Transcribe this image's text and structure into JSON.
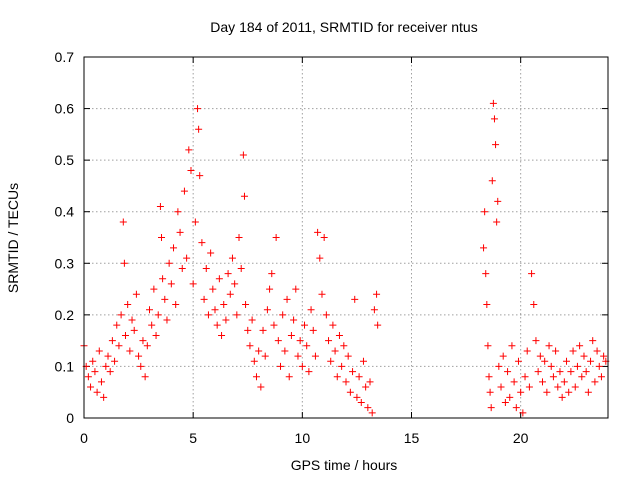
{
  "chart_data": {
    "type": "scatter",
    "title": "Day 184 of 2011, SRMTID for receiver ntus",
    "xlabel": "GPS time / hours",
    "ylabel": "SRMTID / TECUs",
    "xlim": [
      0,
      24
    ],
    "ylim": [
      0,
      0.7
    ],
    "xticks": [
      0,
      5,
      10,
      15,
      20
    ],
    "yticks": [
      0,
      0.1,
      0.2,
      0.3,
      0.4,
      0.5,
      0.6,
      0.7
    ],
    "xtick_labels": [
      "0",
      "5",
      "10",
      "15",
      "20"
    ],
    "ytick_labels": [
      "0",
      "0.1",
      "0.2",
      "0.3",
      "0.4",
      "0.5",
      "0.6",
      "0.7"
    ],
    "grid": true,
    "marker": "+",
    "marker_color": "#ff0000",
    "series": [
      {
        "name": "SRMTID",
        "color": "#ff0000",
        "points": [
          [
            0.0,
            0.14
          ],
          [
            0.1,
            0.1
          ],
          [
            0.2,
            0.08
          ],
          [
            0.3,
            0.06
          ],
          [
            0.4,
            0.11
          ],
          [
            0.5,
            0.09
          ],
          [
            0.6,
            0.05
          ],
          [
            0.7,
            0.13
          ],
          [
            0.8,
            0.07
          ],
          [
            0.9,
            0.04
          ],
          [
            1.0,
            0.1
          ],
          [
            1.1,
            0.12
          ],
          [
            1.2,
            0.09
          ],
          [
            1.3,
            0.15
          ],
          [
            1.4,
            0.11
          ],
          [
            1.5,
            0.18
          ],
          [
            1.6,
            0.14
          ],
          [
            1.7,
            0.2
          ],
          [
            1.8,
            0.38
          ],
          [
            1.85,
            0.3
          ],
          [
            1.9,
            0.16
          ],
          [
            2.0,
            0.22
          ],
          [
            2.1,
            0.13
          ],
          [
            2.2,
            0.19
          ],
          [
            2.3,
            0.17
          ],
          [
            2.4,
            0.24
          ],
          [
            2.5,
            0.12
          ],
          [
            2.6,
            0.1
          ],
          [
            2.7,
            0.15
          ],
          [
            2.8,
            0.08
          ],
          [
            2.9,
            0.14
          ],
          [
            3.0,
            0.21
          ],
          [
            3.1,
            0.18
          ],
          [
            3.2,
            0.25
          ],
          [
            3.3,
            0.16
          ],
          [
            3.4,
            0.2
          ],
          [
            3.5,
            0.41
          ],
          [
            3.55,
            0.35
          ],
          [
            3.6,
            0.27
          ],
          [
            3.7,
            0.23
          ],
          [
            3.8,
            0.19
          ],
          [
            3.9,
            0.3
          ],
          [
            4.0,
            0.26
          ],
          [
            4.1,
            0.33
          ],
          [
            4.2,
            0.22
          ],
          [
            4.3,
            0.4
          ],
          [
            4.4,
            0.36
          ],
          [
            4.5,
            0.29
          ],
          [
            4.6,
            0.44
          ],
          [
            4.7,
            0.31
          ],
          [
            4.8,
            0.52
          ],
          [
            4.9,
            0.48
          ],
          [
            5.0,
            0.26
          ],
          [
            5.1,
            0.38
          ],
          [
            5.2,
            0.6
          ],
          [
            5.25,
            0.56
          ],
          [
            5.3,
            0.47
          ],
          [
            5.4,
            0.34
          ],
          [
            5.5,
            0.23
          ],
          [
            5.6,
            0.29
          ],
          [
            5.7,
            0.2
          ],
          [
            5.8,
            0.32
          ],
          [
            5.9,
            0.25
          ],
          [
            6.0,
            0.21
          ],
          [
            6.1,
            0.18
          ],
          [
            6.2,
            0.27
          ],
          [
            6.3,
            0.16
          ],
          [
            6.4,
            0.22
          ],
          [
            6.5,
            0.19
          ],
          [
            6.6,
            0.28
          ],
          [
            6.7,
            0.24
          ],
          [
            6.8,
            0.31
          ],
          [
            6.9,
            0.26
          ],
          [
            7.0,
            0.2
          ],
          [
            7.1,
            0.35
          ],
          [
            7.2,
            0.29
          ],
          [
            7.3,
            0.51
          ],
          [
            7.35,
            0.43
          ],
          [
            7.4,
            0.22
          ],
          [
            7.5,
            0.17
          ],
          [
            7.6,
            0.14
          ],
          [
            7.7,
            0.19
          ],
          [
            7.8,
            0.11
          ],
          [
            7.9,
            0.08
          ],
          [
            8.0,
            0.13
          ],
          [
            8.1,
            0.06
          ],
          [
            8.2,
            0.17
          ],
          [
            8.3,
            0.12
          ],
          [
            8.4,
            0.21
          ],
          [
            8.5,
            0.25
          ],
          [
            8.6,
            0.28
          ],
          [
            8.7,
            0.18
          ],
          [
            8.8,
            0.35
          ],
          [
            8.9,
            0.15
          ],
          [
            9.0,
            0.1
          ],
          [
            9.1,
            0.2
          ],
          [
            9.2,
            0.13
          ],
          [
            9.3,
            0.23
          ],
          [
            9.4,
            0.08
          ],
          [
            9.5,
            0.16
          ],
          [
            9.6,
            0.19
          ],
          [
            9.7,
            0.25
          ],
          [
            9.8,
            0.12
          ],
          [
            9.9,
            0.15
          ],
          [
            10.0,
            0.1
          ],
          [
            10.1,
            0.18
          ],
          [
            10.2,
            0.14
          ],
          [
            10.3,
            0.09
          ],
          [
            10.4,
            0.21
          ],
          [
            10.5,
            0.17
          ],
          [
            10.6,
            0.12
          ],
          [
            10.7,
            0.36
          ],
          [
            10.8,
            0.31
          ],
          [
            10.9,
            0.24
          ],
          [
            11.0,
            0.35
          ],
          [
            11.1,
            0.2
          ],
          [
            11.2,
            0.15
          ],
          [
            11.3,
            0.11
          ],
          [
            11.4,
            0.18
          ],
          [
            11.5,
            0.13
          ],
          [
            11.6,
            0.08
          ],
          [
            11.7,
            0.16
          ],
          [
            11.8,
            0.1
          ],
          [
            11.9,
            0.14
          ],
          [
            12.0,
            0.07
          ],
          [
            12.1,
            0.12
          ],
          [
            12.2,
            0.05
          ],
          [
            12.3,
            0.09
          ],
          [
            12.4,
            0.23
          ],
          [
            12.5,
            0.04
          ],
          [
            12.6,
            0.08
          ],
          [
            12.7,
            0.03
          ],
          [
            12.8,
            0.11
          ],
          [
            12.9,
            0.06
          ],
          [
            13.0,
            0.02
          ],
          [
            13.1,
            0.07
          ],
          [
            13.2,
            0.01
          ],
          [
            13.3,
            0.21
          ],
          [
            13.4,
            0.24
          ],
          [
            13.45,
            0.18
          ],
          [
            18.3,
            0.33
          ],
          [
            18.35,
            0.4
          ],
          [
            18.4,
            0.28
          ],
          [
            18.45,
            0.22
          ],
          [
            18.5,
            0.14
          ],
          [
            18.55,
            0.08
          ],
          [
            18.6,
            0.05
          ],
          [
            18.65,
            0.02
          ],
          [
            18.7,
            0.46
          ],
          [
            18.75,
            0.61
          ],
          [
            18.8,
            0.58
          ],
          [
            18.85,
            0.53
          ],
          [
            18.9,
            0.38
          ],
          [
            18.95,
            0.42
          ],
          [
            19.0,
            0.1
          ],
          [
            19.1,
            0.06
          ],
          [
            19.2,
            0.12
          ],
          [
            19.3,
            0.03
          ],
          [
            19.4,
            0.09
          ],
          [
            19.5,
            0.04
          ],
          [
            19.6,
            0.14
          ],
          [
            19.7,
            0.07
          ],
          [
            19.8,
            0.02
          ],
          [
            19.9,
            0.11
          ],
          [
            20.0,
            0.05
          ],
          [
            20.1,
            0.01
          ],
          [
            20.2,
            0.08
          ],
          [
            20.3,
            0.13
          ],
          [
            20.4,
            0.06
          ],
          [
            20.5,
            0.28
          ],
          [
            20.6,
            0.22
          ],
          [
            20.7,
            0.15
          ],
          [
            20.8,
            0.09
          ],
          [
            20.9,
            0.12
          ],
          [
            21.0,
            0.07
          ],
          [
            21.1,
            0.11
          ],
          [
            21.2,
            0.05
          ],
          [
            21.3,
            0.14
          ],
          [
            21.4,
            0.1
          ],
          [
            21.5,
            0.08
          ],
          [
            21.6,
            0.13
          ],
          [
            21.7,
            0.06
          ],
          [
            21.8,
            0.09
          ],
          [
            21.9,
            0.04
          ],
          [
            22.0,
            0.07
          ],
          [
            22.1,
            0.11
          ],
          [
            22.2,
            0.05
          ],
          [
            22.3,
            0.09
          ],
          [
            22.4,
            0.13
          ],
          [
            22.5,
            0.06
          ],
          [
            22.6,
            0.1
          ],
          [
            22.7,
            0.14
          ],
          [
            22.8,
            0.08
          ],
          [
            22.9,
            0.12
          ],
          [
            23.0,
            0.09
          ],
          [
            23.1,
            0.05
          ],
          [
            23.2,
            0.11
          ],
          [
            23.3,
            0.15
          ],
          [
            23.4,
            0.07
          ],
          [
            23.5,
            0.13
          ],
          [
            23.6,
            0.1
          ],
          [
            23.7,
            0.08
          ],
          [
            23.8,
            0.12
          ],
          [
            23.9,
            0.11
          ]
        ]
      }
    ]
  }
}
